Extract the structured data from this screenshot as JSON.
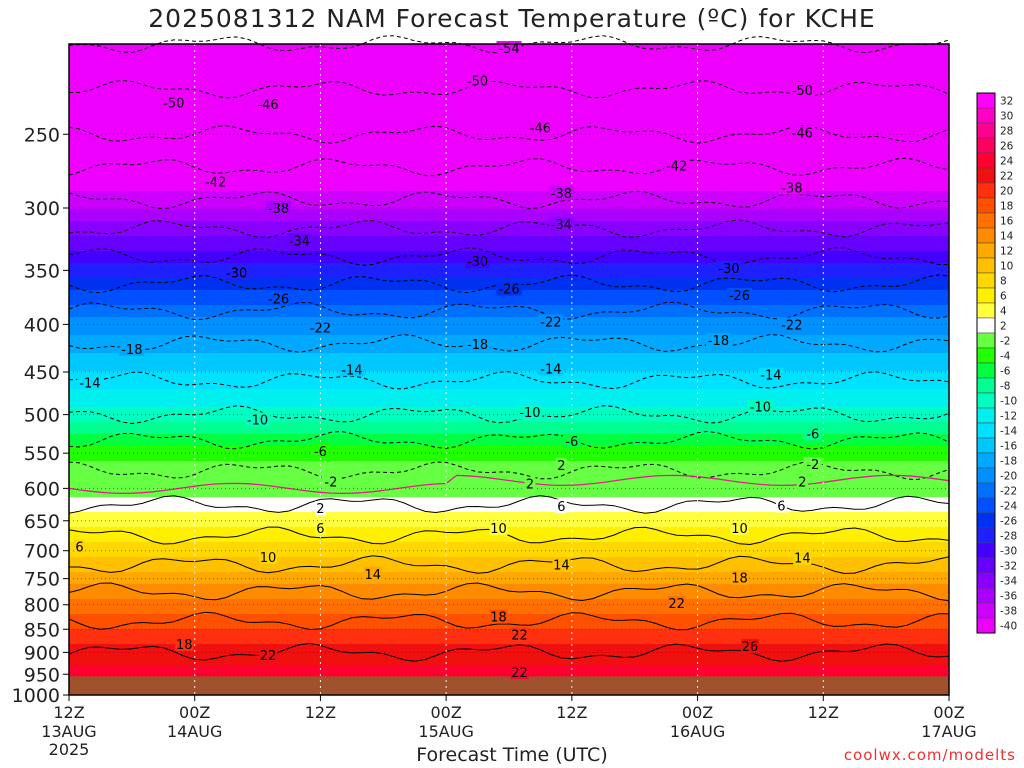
{
  "chart_data": {
    "type": "heatmap",
    "title": "2025081312 NAM Forecast Temperature (ºC) for KCHE",
    "xlabel": "Forecast Time (UTC)",
    "ylabel": "",
    "y_scale": "log",
    "y_axis_reversed": true,
    "ylim": [
      1000,
      200
    ],
    "y_ticks": [
      250,
      300,
      350,
      400,
      450,
      500,
      550,
      600,
      650,
      700,
      750,
      800,
      850,
      900,
      950,
      1000
    ],
    "ground_level_pressure": 955,
    "grid": true,
    "x_ticks": [
      {
        "hours": 0,
        "time": "12Z",
        "date": "13AUG",
        "year": "2025"
      },
      {
        "hours": 12,
        "time": "00Z",
        "date": "14AUG",
        "year": ""
      },
      {
        "hours": 24,
        "time": "12Z",
        "date": "",
        "year": ""
      },
      {
        "hours": 36,
        "time": "00Z",
        "date": "15AUG",
        "year": ""
      },
      {
        "hours": 48,
        "time": "12Z",
        "date": "",
        "year": ""
      },
      {
        "hours": 60,
        "time": "00Z",
        "date": "16AUG",
        "year": ""
      },
      {
        "hours": 72,
        "time": "12Z",
        "date": "",
        "year": ""
      },
      {
        "hours": 84,
        "time": "00Z",
        "date": "17AUG",
        "year": ""
      }
    ],
    "xlim": [
      0,
      84
    ],
    "isotherm_profile": {
      "pressures": [
        955,
        900,
        850,
        800,
        750,
        700,
        650,
        600,
        550,
        500,
        450,
        400,
        350,
        300,
        250,
        200
      ],
      "temperatures": [
        24,
        22,
        19,
        16,
        12,
        8,
        4,
        0,
        -4,
        -10,
        -15,
        -20,
        -28,
        -37,
        -46,
        -54
      ]
    },
    "contour_labels": [
      {
        "value": "-54",
        "hours": 42,
        "p": 202
      },
      {
        "value": "-50",
        "hours": 10,
        "p": 231
      },
      {
        "value": "-50",
        "hours": 39,
        "p": 219
      },
      {
        "value": "-50",
        "hours": 70,
        "p": 224
      },
      {
        "value": "-46",
        "hours": 19,
        "p": 232
      },
      {
        "value": "-46",
        "hours": 45,
        "p": 246
      },
      {
        "value": "-46",
        "hours": 70,
        "p": 249
      },
      {
        "value": "-42",
        "hours": 14,
        "p": 281
      },
      {
        "value": "-42",
        "hours": 58,
        "p": 270
      },
      {
        "value": "-38",
        "hours": 20,
        "p": 300
      },
      {
        "value": "-38",
        "hours": 47,
        "p": 289
      },
      {
        "value": "-38",
        "hours": 69,
        "p": 285
      },
      {
        "value": "-34",
        "hours": 22,
        "p": 325
      },
      {
        "value": "-34",
        "hours": 47,
        "p": 312
      },
      {
        "value": "-30",
        "hours": 16,
        "p": 352
      },
      {
        "value": "-30",
        "hours": 39,
        "p": 342
      },
      {
        "value": "-30",
        "hours": 63,
        "p": 348
      },
      {
        "value": "-26",
        "hours": 20,
        "p": 375
      },
      {
        "value": "-26",
        "hours": 42,
        "p": 366
      },
      {
        "value": "-26",
        "hours": 64,
        "p": 372
      },
      {
        "value": "-22",
        "hours": 24,
        "p": 403
      },
      {
        "value": "-22",
        "hours": 46,
        "p": 397
      },
      {
        "value": "-22",
        "hours": 69,
        "p": 400
      },
      {
        "value": "-18",
        "hours": 6,
        "p": 425
      },
      {
        "value": "-18",
        "hours": 39,
        "p": 420
      },
      {
        "value": "-18",
        "hours": 62,
        "p": 416
      },
      {
        "value": "-14",
        "hours": 2,
        "p": 462
      },
      {
        "value": "-14",
        "hours": 27,
        "p": 447
      },
      {
        "value": "-14",
        "hours": 46,
        "p": 446
      },
      {
        "value": "-14",
        "hours": 67,
        "p": 453
      },
      {
        "value": "-10",
        "hours": 18,
        "p": 506
      },
      {
        "value": "-10",
        "hours": 44,
        "p": 497
      },
      {
        "value": "-10",
        "hours": 66,
        "p": 490
      },
      {
        "value": "-6",
        "hours": 24,
        "p": 547
      },
      {
        "value": "-6",
        "hours": 48,
        "p": 534
      },
      {
        "value": "-6",
        "hours": 71,
        "p": 524
      },
      {
        "value": "-2",
        "hours": 25,
        "p": 590
      },
      {
        "value": "2",
        "hours": 47,
        "p": 566
      },
      {
        "value": "-2",
        "hours": 71,
        "p": 565
      },
      {
        "value": "2",
        "hours": 44,
        "p": 593
      },
      {
        "value": "2",
        "hours": 70,
        "p": 590
      },
      {
        "value": "2",
        "hours": 24,
        "p": 630
      },
      {
        "value": "6",
        "hours": 47,
        "p": 627
      },
      {
        "value": "6",
        "hours": 68,
        "p": 626
      },
      {
        "value": "6",
        "hours": 24,
        "p": 662
      },
      {
        "value": "10",
        "hours": 41,
        "p": 662
      },
      {
        "value": "10",
        "hours": 64,
        "p": 662
      },
      {
        "value": "6",
        "hours": 1,
        "p": 693
      },
      {
        "value": "10",
        "hours": 19,
        "p": 711
      },
      {
        "value": "14",
        "hours": 29,
        "p": 741
      },
      {
        "value": "14",
        "hours": 47,
        "p": 724
      },
      {
        "value": "14",
        "hours": 70,
        "p": 712
      },
      {
        "value": "18",
        "hours": 64,
        "p": 748
      },
      {
        "value": "22",
        "hours": 58,
        "p": 797
      },
      {
        "value": "18",
        "hours": 41,
        "p": 824
      },
      {
        "value": "18",
        "hours": 11,
        "p": 881
      },
      {
        "value": "22",
        "hours": 43,
        "p": 861
      },
      {
        "value": "26",
        "hours": 65,
        "p": 886
      },
      {
        "value": "22",
        "hours": 19,
        "p": 906
      },
      {
        "value": "22",
        "hours": 43,
        "p": 945
      }
    ],
    "colorbar": {
      "levels": [
        "32",
        "30",
        "28",
        "26",
        "24",
        "22",
        "20",
        "18",
        "16",
        "14",
        "12",
        "10",
        "8",
        "6",
        "4",
        "2",
        "-2",
        "-4",
        "-6",
        "-8",
        "-10",
        "-12",
        "-14",
        "-16",
        "-18",
        "-20",
        "-22",
        "-24",
        "-26",
        "-28",
        "-30",
        "-32",
        "-34",
        "-36",
        "-38",
        "-40"
      ],
      "colors": [
        "#ff00ff",
        "#ff00c8",
        "#ff0090",
        "#ff0060",
        "#ff0030",
        "#f01010",
        "#ff3010",
        "#ff5000",
        "#ff7000",
        "#ff8c00",
        "#ffa800",
        "#ffc000",
        "#ffd800",
        "#ffef00",
        "#ffff40",
        "#ffffff",
        "#66ff44",
        "#22ff00",
        "#00ff40",
        "#00ff90",
        "#00ffc0",
        "#00f0f0",
        "#00e0ff",
        "#00c8ff",
        "#00a8ff",
        "#0090ff",
        "#0070ff",
        "#0050ff",
        "#0030f0",
        "#2020ff",
        "#4400ff",
        "#6600ff",
        "#8800ff",
        "#aa00ff",
        "#cc00ff",
        "#ee00ff"
      ]
    },
    "ground_color": "#a0522d"
  },
  "footer": "coolwx.com/modelts"
}
